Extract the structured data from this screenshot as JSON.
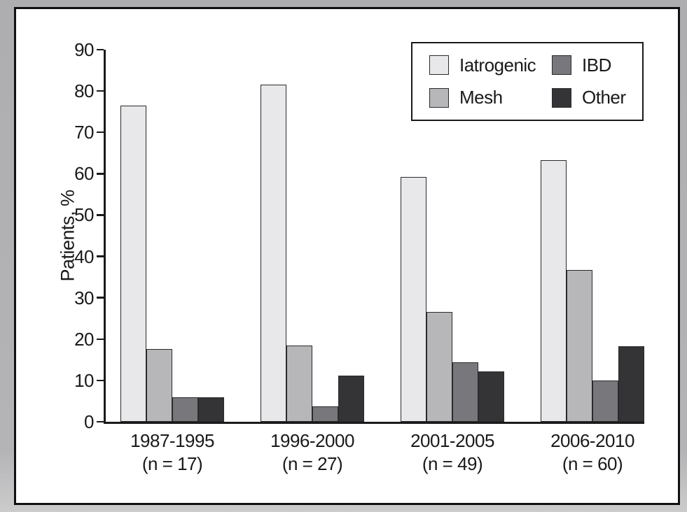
{
  "chart_data": {
    "type": "bar",
    "title": "",
    "xlabel": "",
    "ylabel": "Patients, %",
    "ylim": [
      0,
      90
    ],
    "yticks": [
      0,
      10,
      20,
      30,
      40,
      50,
      60,
      70,
      80,
      90
    ],
    "grid": false,
    "legend_position": "top-right",
    "legend_row_major": [
      "Iatrogenic",
      "IBD",
      "Mesh",
      "Other"
    ],
    "categories": [
      "1987-1995",
      "1996-2000",
      "2001-2005",
      "2006-2010"
    ],
    "category_sublabels": [
      "(n = 17)",
      "(n = 27)",
      "(n = 49)",
      "(n = 60)"
    ],
    "series": [
      {
        "name": "Iatrogenic",
        "color": "#e8e8ea",
        "values": [
          76.5,
          81.5,
          59.2,
          63.3
        ]
      },
      {
        "name": "Mesh",
        "color": "#b7b7b9",
        "values": [
          17.6,
          18.5,
          26.5,
          36.7
        ]
      },
      {
        "name": "IBD",
        "color": "#78787c",
        "values": [
          5.9,
          3.7,
          14.3,
          10
        ]
      },
      {
        "name": "Other",
        "color": "#343437",
        "values": [
          5.9,
          11.1,
          12.2,
          18.3
        ]
      }
    ],
    "colors": {
      "axis": "#1a1a1a",
      "text": "#1a1a1a",
      "bar_border": "#2a2a2d",
      "panel_border": "#111113",
      "panel_background": "#ffffff",
      "outer_margin": "#b4b4b6"
    }
  }
}
